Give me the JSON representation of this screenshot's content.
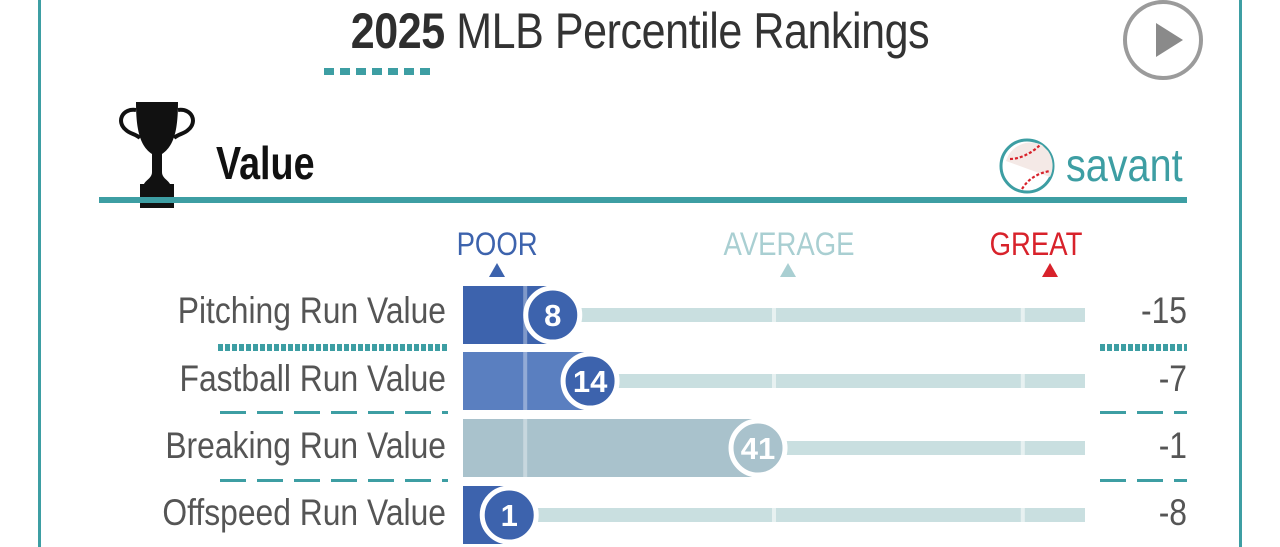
{
  "header": {
    "title_year": "2025",
    "title_rest": " MLB Percentile Rankings",
    "play_button": "play-icon"
  },
  "section": {
    "title": "Value",
    "icon": "trophy-icon",
    "brand": "savant",
    "brand_icon": "baseball-icon"
  },
  "scale": {
    "poor": "POOR",
    "average": "AVERAGE",
    "great": "GREAT"
  },
  "colors": {
    "accent": "#3d9ea3",
    "poor": "#3d63ad",
    "average": "#a9cfd2",
    "great": "#d8222b",
    "track": "#c9dfe0"
  },
  "chart_data": {
    "type": "bar",
    "title": "",
    "categories": [
      "Pitching Run Value",
      "Fastball Run Value",
      "Breaking Run Value",
      "Offspeed Run Value"
    ],
    "series": [
      {
        "name": "Percentile",
        "values": [
          8,
          14,
          41,
          1
        ]
      }
    ],
    "ylim": [
      0,
      100
    ],
    "stat_values": [
      "-15",
      "-7",
      "-1",
      "-8"
    ],
    "bar_colors": [
      "#3d63ad",
      "#5a7fc0",
      "#a9c2cc",
      "#3d63ad"
    ],
    "badge_colors": [
      "#3d63ad",
      "#3d63ad",
      "#a9c2cc",
      "#3d63ad"
    ]
  }
}
